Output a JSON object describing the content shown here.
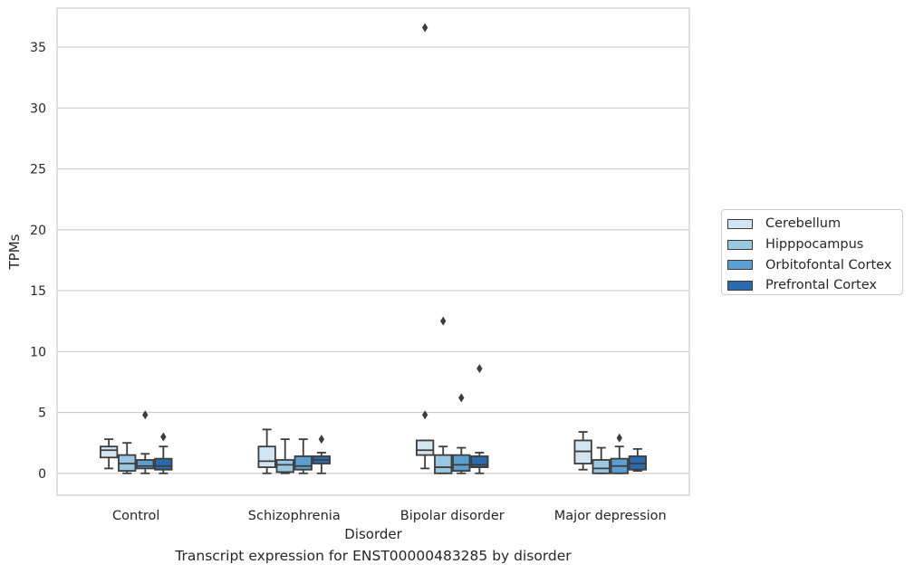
{
  "caption": "Transcript expression for ENST00000483285 by disorder",
  "chart_data": {
    "type": "box",
    "xlabel": "Disorder",
    "ylabel": "TPMs",
    "ylim": [
      -1.8,
      38.2
    ],
    "yticks": [
      0,
      5,
      10,
      15,
      20,
      25,
      30,
      35
    ],
    "grid": true,
    "legend_position": "right",
    "categories": [
      "Control",
      "Schizophrenia",
      "Bipolar disorder",
      "Major depression"
    ],
    "series": [
      {
        "name": "Cerebellum",
        "color": "#d3e4f3",
        "boxes": [
          {
            "whislo": 0.4,
            "q1": 1.3,
            "med": 1.9,
            "q3": 2.2,
            "whishi": 2.8,
            "fliers": []
          },
          {
            "whislo": 0.0,
            "q1": 0.5,
            "med": 1.0,
            "q3": 2.2,
            "whishi": 3.6,
            "fliers": []
          },
          {
            "whislo": 0.4,
            "q1": 1.5,
            "med": 1.9,
            "q3": 2.7,
            "whishi": 2.7,
            "fliers": [
              4.8,
              36.6
            ]
          },
          {
            "whislo": 0.3,
            "q1": 0.8,
            "med": 1.8,
            "q3": 2.7,
            "whishi": 3.4,
            "fliers": []
          }
        ]
      },
      {
        "name": "Hipppocampus",
        "color": "#9ac8e0",
        "boxes": [
          {
            "whislo": 0.0,
            "q1": 0.2,
            "med": 0.8,
            "q3": 1.5,
            "whishi": 2.5,
            "fliers": []
          },
          {
            "whislo": 0.0,
            "q1": 0.1,
            "med": 0.7,
            "q3": 1.1,
            "whishi": 2.8,
            "fliers": []
          },
          {
            "whislo": 0.0,
            "q1": 0.0,
            "med": 0.5,
            "q3": 1.5,
            "whishi": 2.2,
            "fliers": [
              12.5
            ]
          },
          {
            "whislo": 0.0,
            "q1": 0.0,
            "med": 0.4,
            "q3": 1.1,
            "whishi": 2.1,
            "fliers": []
          }
        ]
      },
      {
        "name": "Orbitofontal Cortex",
        "color": "#5a9fcf",
        "boxes": [
          {
            "whislo": 0.0,
            "q1": 0.4,
            "med": 0.6,
            "q3": 1.1,
            "whishi": 1.6,
            "fliers": [
              4.8
            ]
          },
          {
            "whislo": 0.0,
            "q1": 0.3,
            "med": 0.6,
            "q3": 1.4,
            "whishi": 2.8,
            "fliers": []
          },
          {
            "whislo": 0.0,
            "q1": 0.2,
            "med": 0.7,
            "q3": 1.5,
            "whishi": 2.1,
            "fliers": [
              6.2
            ]
          },
          {
            "whislo": 0.0,
            "q1": 0.0,
            "med": 0.6,
            "q3": 1.2,
            "whishi": 2.2,
            "fliers": [
              2.9
            ]
          }
        ]
      },
      {
        "name": "Prefrontal Cortex",
        "color": "#2a6aad",
        "boxes": [
          {
            "whislo": 0.0,
            "q1": 0.3,
            "med": 0.6,
            "q3": 1.2,
            "whishi": 2.2,
            "fliers": [
              3.0
            ]
          },
          {
            "whislo": 0.0,
            "q1": 0.8,
            "med": 1.1,
            "q3": 1.4,
            "whishi": 1.7,
            "fliers": [
              2.8
            ]
          },
          {
            "whislo": 0.0,
            "q1": 0.5,
            "med": 0.7,
            "q3": 1.4,
            "whishi": 1.7,
            "fliers": [
              8.6
            ]
          },
          {
            "whislo": 0.2,
            "q1": 0.3,
            "med": 0.8,
            "q3": 1.4,
            "whishi": 2.0,
            "fliers": []
          }
        ]
      }
    ]
  }
}
